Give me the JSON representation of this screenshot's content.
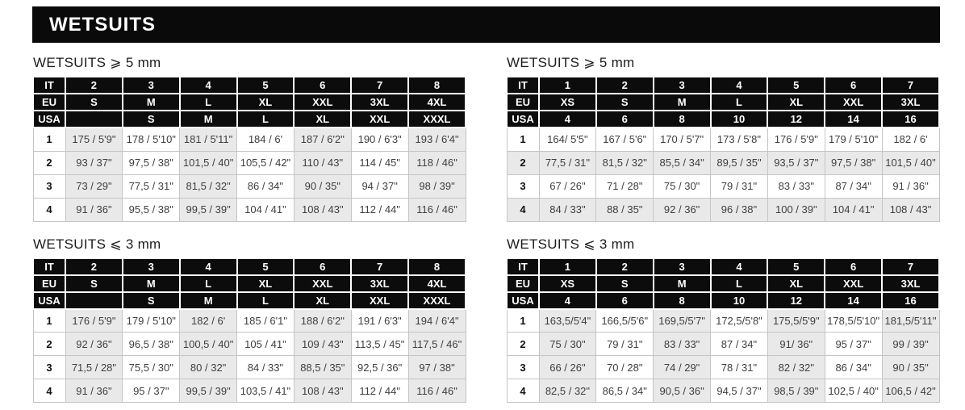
{
  "page_title": "WETSUITS",
  "colors": {
    "header_bar_bg": "#0a0a0a",
    "table_header_bg": "#0c0c0c",
    "stripe_bg": "#e9e9e9",
    "body_text": "#3f3f3f"
  },
  "tables": [
    {
      "title": "WETSUITS ⩾ 5 mm",
      "header_rows": [
        {
          "label": "IT",
          "cells": [
            "2",
            "3",
            "4",
            "5",
            "6",
            "7",
            "8"
          ]
        },
        {
          "label": "EU",
          "cells": [
            "S",
            "M",
            "L",
            "XL",
            "XXL",
            "3XL",
            "4XL"
          ]
        },
        {
          "label": "USA",
          "cells": [
            "",
            "S",
            "M",
            "L",
            "XL",
            "XXL",
            "XXXL"
          ]
        }
      ],
      "body_rows": [
        {
          "label": "1",
          "cells": [
            "175 / 5'9\"",
            "178 / 5'10\"",
            "181 / 5'11\"",
            "184 / 6'",
            "187 / 6'2\"",
            "190 / 6'3\"",
            "193 / 6'4\""
          ]
        },
        {
          "label": "2",
          "cells": [
            "93 / 37\"",
            "97,5 / 38\"",
            "101,5 / 40\"",
            "105,5 / 42\"",
            "110 / 43\"",
            "114 / 45\"",
            "118 / 46\""
          ]
        },
        {
          "label": "3",
          "cells": [
            "73 / 29\"",
            "77,5 / 31\"",
            "81,5 / 32\"",
            "86 / 34\"",
            "90 / 35\"",
            "94 / 37\"",
            "98 / 39\""
          ]
        },
        {
          "label": "4",
          "cells": [
            "91 / 36\"",
            "95,5 / 38\"",
            "99,5 / 39\"",
            "104 / 41\"",
            "108 / 43\"",
            "112 / 44\"",
            "116 / 46\""
          ]
        }
      ]
    },
    {
      "title": "WETSUITS ⩾ 5 mm",
      "header_rows": [
        {
          "label": "IT",
          "cells": [
            "1",
            "2",
            "3",
            "4",
            "5",
            "6",
            "7"
          ]
        },
        {
          "label": "EU",
          "cells": [
            "XS",
            "S",
            "M",
            "L",
            "XL",
            "XXL",
            "3XL"
          ]
        },
        {
          "label": "USA",
          "cells": [
            "4",
            "6",
            "8",
            "10",
            "12",
            "14",
            "16"
          ]
        }
      ],
      "body_rows": [
        {
          "label": "1",
          "cells": [
            "164/ 5'5\"",
            "167 / 5'6\"",
            "170 / 5'7\"",
            "173 / 5'8\"",
            "176 / 5'9\"",
            "179 / 5'10\"",
            "182 / 6'"
          ]
        },
        {
          "label": "2",
          "cells": [
            "77,5 / 31\"",
            "81,5 / 32\"",
            "85,5 / 34\"",
            "89,5 / 35\"",
            "93,5 / 37\"",
            "97,5 / 38\"",
            "101,5 / 40\""
          ]
        },
        {
          "label": "3",
          "cells": [
            "67 / 26\"",
            "71 / 28\"",
            "75 / 30\"",
            "79 / 31\"",
            "83 / 33\"",
            "87 / 34\"",
            "91 / 36\""
          ]
        },
        {
          "label": "4",
          "cells": [
            "84 / 33\"",
            "88 / 35\"",
            "92 / 36\"",
            "96 / 38\"",
            "100 / 39\"",
            "104 / 41\"",
            "108 / 43\""
          ]
        }
      ]
    },
    {
      "title": "WETSUITS ⩽ 3 mm",
      "header_rows": [
        {
          "label": "IT",
          "cells": [
            "2",
            "3",
            "4",
            "5",
            "6",
            "7",
            "8"
          ]
        },
        {
          "label": "EU",
          "cells": [
            "S",
            "M",
            "L",
            "XL",
            "XXL",
            "3XL",
            "4XL"
          ]
        },
        {
          "label": "USA",
          "cells": [
            "",
            "S",
            "M",
            "L",
            "XL",
            "XXL",
            "XXXL"
          ]
        }
      ],
      "body_rows": [
        {
          "label": "1",
          "cells": [
            "176 / 5'9\"",
            "179 / 5'10\"",
            "182 / 6'",
            "185 / 6'1\"",
            "188 / 6'2\"",
            "191 / 6'3\"",
            "194 / 6'4\""
          ]
        },
        {
          "label": "2",
          "cells": [
            "92 / 36\"",
            "96,5 / 38\"",
            "100,5 / 40\"",
            "105 / 41\"",
            "109 / 43\"",
            "113,5 / 45\"",
            "117,5 / 46\""
          ]
        },
        {
          "label": "3",
          "cells": [
            "71,5 / 28\"",
            "75,5 / 30\"",
            "80 / 32\"",
            "84 / 33\"",
            "88,5 / 35\"",
            "92,5 / 36\"",
            "97 / 38\""
          ]
        },
        {
          "label": "4",
          "cells": [
            "91 / 36\"",
            "95 / 37\"",
            "99,5 / 39\"",
            "103,5 / 41\"",
            "108 / 43\"",
            "112 / 44\"",
            "116 / 46\""
          ]
        }
      ]
    },
    {
      "title": "WETSUITS ⩽ 3 mm",
      "header_rows": [
        {
          "label": "IT",
          "cells": [
            "1",
            "2",
            "3",
            "4",
            "5",
            "6",
            "7"
          ]
        },
        {
          "label": "EU",
          "cells": [
            "XS",
            "S",
            "M",
            "L",
            "XL",
            "XXL",
            "3XL"
          ]
        },
        {
          "label": "USA",
          "cells": [
            "4",
            "6",
            "8",
            "10",
            "12",
            "14",
            "16"
          ]
        }
      ],
      "body_rows": [
        {
          "label": "1",
          "cells": [
            "163,5/5'4\"",
            "166,5/5'6\"",
            "169,5/5'7\"",
            "172,5/5'8\"",
            "175,5/5'9\"",
            "178,5/5'10\"",
            "181,5/5'11\""
          ]
        },
        {
          "label": "2",
          "cells": [
            "75 / 30\"",
            "79 / 31\"",
            "83 / 33\"",
            "87 / 34\"",
            "91/ 36\"",
            "95 / 37\"",
            "99 / 39\""
          ]
        },
        {
          "label": "3",
          "cells": [
            "66 / 26\"",
            "70 / 28\"",
            "74 / 29\"",
            "78 / 31\"",
            "82 / 32\"",
            "86 / 34\"",
            "90 / 35\""
          ]
        },
        {
          "label": "4",
          "cells": [
            "82,5 / 32\"",
            "86,5 / 34\"",
            "90,5 / 36\"",
            "94,5 / 37\"",
            "98,5 / 39\"",
            "102,5 / 40\"",
            "106,5 / 42\""
          ]
        }
      ]
    }
  ]
}
